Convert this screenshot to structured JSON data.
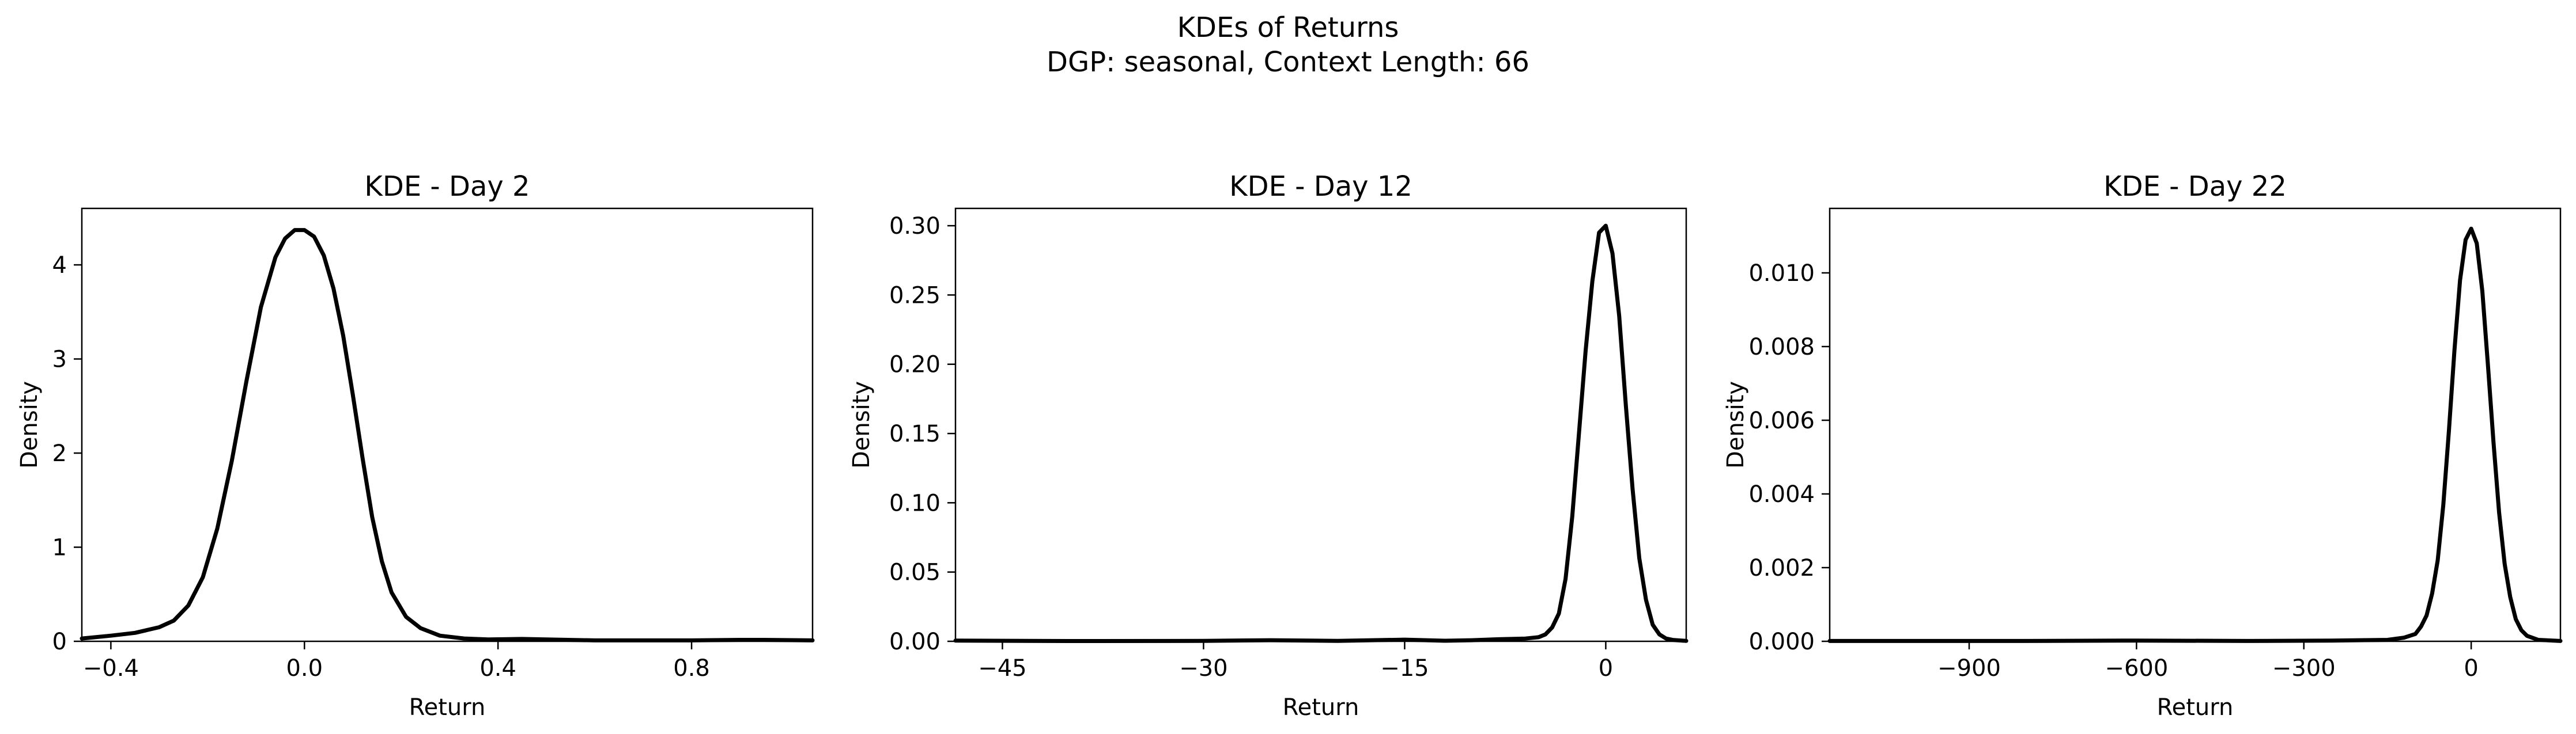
{
  "figure": {
    "title_line1": "KDEs of Returns",
    "title_line2": "DGP: seasonal, Context Length: 66"
  },
  "chart_data": [
    {
      "type": "line",
      "title": "KDE - Day 2",
      "xlabel": "Return",
      "ylabel": "Density",
      "xlim": [
        -0.46,
        1.05
      ],
      "ylim": [
        0,
        4.6
      ],
      "xticks": [
        -0.4,
        0.0,
        0.4,
        0.8
      ],
      "xtick_labels": [
        "−0.4",
        "0.0",
        "0.4",
        "0.8"
      ],
      "yticks": [
        0,
        1,
        2,
        3,
        4
      ],
      "ytick_labels": [
        "0",
        "1",
        "2",
        "3",
        "4"
      ],
      "grid": false,
      "line_color": "#000000",
      "series": [
        {
          "x": [
            -0.46,
            -0.4,
            -0.35,
            -0.3,
            -0.27,
            -0.24,
            -0.21,
            -0.18,
            -0.15,
            -0.12,
            -0.09,
            -0.06,
            -0.04,
            -0.02,
            0.0,
            0.02,
            0.04,
            0.06,
            0.08,
            0.1,
            0.12,
            0.14,
            0.16,
            0.18,
            0.21,
            0.24,
            0.28,
            0.33,
            0.38,
            0.45,
            0.5,
            0.6,
            0.7,
            0.8,
            0.9,
            0.95,
            1.05
          ],
          "y": [
            0.03,
            0.06,
            0.09,
            0.15,
            0.22,
            0.38,
            0.68,
            1.2,
            1.92,
            2.76,
            3.55,
            4.08,
            4.28,
            4.37,
            4.37,
            4.3,
            4.1,
            3.75,
            3.25,
            2.62,
            1.95,
            1.32,
            0.85,
            0.52,
            0.26,
            0.14,
            0.06,
            0.03,
            0.02,
            0.025,
            0.02,
            0.01,
            0.01,
            0.01,
            0.015,
            0.015,
            0.01
          ]
        }
      ]
    },
    {
      "type": "line",
      "title": "KDE - Day 12",
      "xlabel": "Return",
      "ylabel": "Density",
      "xlim": [
        -48.5,
        6
      ],
      "ylim": [
        0,
        0.3125
      ],
      "xticks": [
        -45,
        -30,
        -15,
        0
      ],
      "xtick_labels": [
        "−45",
        "−30",
        "−15",
        "0"
      ],
      "yticks": [
        0.0,
        0.05,
        0.1,
        0.15,
        0.2,
        0.25,
        0.3
      ],
      "ytick_labels": [
        "0.00",
        "0.05",
        "0.10",
        "0.15",
        "0.20",
        "0.25",
        "0.30"
      ],
      "grid": false,
      "line_color": "#000000",
      "series": [
        {
          "x": [
            -48.5,
            -40,
            -30,
            -25,
            -20,
            -15,
            -12,
            -10,
            -8,
            -6,
            -5,
            -4.5,
            -4,
            -3.5,
            -3,
            -2.5,
            -2,
            -1.5,
            -1,
            -0.5,
            0,
            0.5,
            1,
            1.5,
            2,
            2.5,
            3,
            3.5,
            4,
            4.5,
            5,
            6
          ],
          "y": [
            0.0005,
            0.0002,
            0.0003,
            0.0008,
            0.0003,
            0.0012,
            0.0004,
            0.0008,
            0.0015,
            0.002,
            0.003,
            0.005,
            0.01,
            0.02,
            0.045,
            0.09,
            0.15,
            0.21,
            0.26,
            0.295,
            0.3,
            0.28,
            0.235,
            0.17,
            0.11,
            0.06,
            0.03,
            0.012,
            0.005,
            0.002,
            0.001,
            0.0003
          ]
        }
      ]
    },
    {
      "type": "line",
      "title": "KDE - Day 22",
      "xlabel": "Return",
      "ylabel": "Density",
      "xlim": [
        -1150,
        160
      ],
      "ylim": [
        0,
        0.01175
      ],
      "xticks": [
        -900,
        -600,
        -300,
        0
      ],
      "xtick_labels": [
        "−900",
        "−600",
        "−300",
        "0"
      ],
      "yticks": [
        0.0,
        0.002,
        0.004,
        0.006,
        0.008,
        0.01
      ],
      "ytick_labels": [
        "0.000",
        "0.002",
        "0.004",
        "0.006",
        "0.008",
        "0.010"
      ],
      "grid": false,
      "line_color": "#000000",
      "series": [
        {
          "x": [
            -1150,
            -1000,
            -800,
            -600,
            -400,
            -250,
            -150,
            -120,
            -100,
            -90,
            -80,
            -70,
            -60,
            -50,
            -40,
            -30,
            -20,
            -10,
            0,
            10,
            20,
            30,
            40,
            50,
            60,
            70,
            80,
            90,
            100,
            120,
            160
          ],
          "y": [
            1e-05,
            1e-05,
            1e-05,
            2e-05,
            1e-05,
            2e-05,
            4e-05,
            0.0001,
            0.0002,
            0.0004,
            0.0007,
            0.0013,
            0.0022,
            0.0037,
            0.0057,
            0.0079,
            0.0098,
            0.0109,
            0.0112,
            0.0108,
            0.0095,
            0.0075,
            0.0054,
            0.0035,
            0.0021,
            0.0012,
            0.0006,
            0.0003,
            0.00015,
            4e-05,
            1e-05
          ]
        }
      ]
    }
  ]
}
